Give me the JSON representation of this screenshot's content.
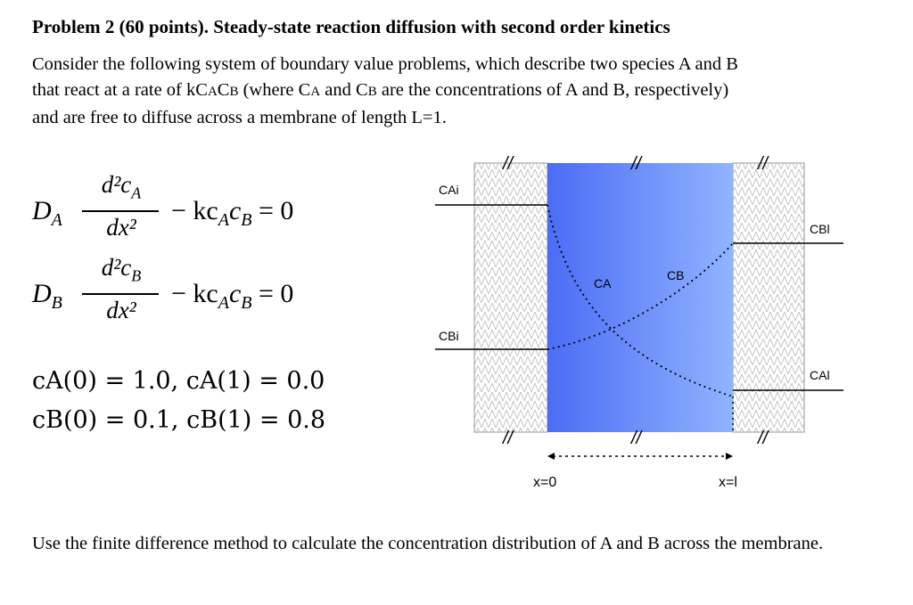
{
  "title": "Problem 2 (60 points). Steady-state reaction diffusion with second order kinetics",
  "intro": {
    "line1": "Consider the following system of boundary value problems, which describe two species A and B",
    "line2": "that  react at a rate of kC",
    "line2_sub1": "A",
    "line2_c": "C",
    "line2_sub2": "B",
    "line2_mid": " (where C",
    "line2_sub3": "A",
    "line2_and": " and C",
    "line2_sub4": "B",
    "line2_end": " are the concentrations of A and B, respectively)",
    "line3": "and are free to diffuse across a membrane of length L=1."
  },
  "equations": {
    "eq1": {
      "lhs_D": "D",
      "lhs_sub": "A",
      "num": "d²c",
      "num_sub": "A",
      "den": "dx²",
      "rest": "− kc",
      "rest_sub1": "A",
      "rest_c": "c",
      "rest_sub2": "B",
      "rhs": " = 0"
    },
    "eq2": {
      "lhs_D": "D",
      "lhs_sub": "B",
      "num": "d²c",
      "num_sub": "B",
      "den": "dx²",
      "rest": "− kc",
      "rest_sub1": "A",
      "rest_c": "c",
      "rest_sub2": "B",
      "rhs": " = 0"
    }
  },
  "boundary_conditions": {
    "bc1": "cA(0) = 1.0,   cA(1) = 0.0",
    "bc2": "cB(0) = 0.1,   cB(1) = 0.8"
  },
  "diagram": {
    "labels": {
      "cai": "CAi",
      "cbi": "CBi",
      "cbl": "CBl",
      "cal": "CAl",
      "ca": "CA",
      "cb": "CB",
      "x0": "x=0",
      "xl": "x=l",
      "break_mark": "//"
    },
    "colors": {
      "membrane_left": "#4b6cf5",
      "membrane_right": "#8fb4ff",
      "hatch": "#bdbdbd"
    }
  },
  "footer": "Use the finite difference method to calculate the concentration distribution of A and B across the membrane."
}
